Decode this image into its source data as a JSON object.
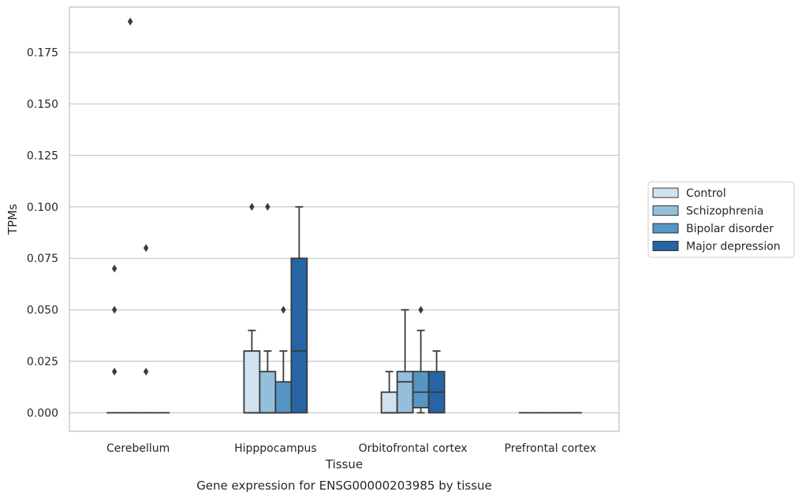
{
  "chart_data": {
    "type": "box",
    "title": "Gene expression for ENSG00000203985 by tissue",
    "xlabel": "Tissue",
    "ylabel": "TPMs",
    "ylim": [
      -0.009,
      0.197
    ],
    "yticks": [
      "0.000",
      "0.025",
      "0.050",
      "0.075",
      "0.100",
      "0.125",
      "0.150",
      "0.175"
    ],
    "ytick_values": [
      0,
      0.025,
      0.05,
      0.075,
      0.1,
      0.125,
      0.15,
      0.175
    ],
    "grid": "horizontal",
    "legend_position": "right",
    "categories": [
      "Cerebellum",
      "Hipppocampus",
      "Orbitofrontal cortex",
      "Prefrontal cortex"
    ],
    "series": [
      {
        "name": "Control",
        "color": "#d0e1f0",
        "boxes": [
          {
            "q1": 0,
            "median": 0,
            "q3": 0,
            "whislo": 0,
            "whishi": 0,
            "fliers": [
              0.02,
              0.05,
              0.07
            ]
          },
          {
            "q1": 0,
            "median": 0,
            "q3": 0.03,
            "whislo": 0,
            "whishi": 0.04,
            "fliers": [
              0.1
            ]
          },
          {
            "q1": 0,
            "median": 0,
            "q3": 0.01,
            "whislo": 0,
            "whishi": 0.02,
            "fliers": []
          },
          {
            "q1": 0,
            "median": 0,
            "q3": 0,
            "whislo": 0,
            "whishi": 0,
            "fliers": []
          }
        ]
      },
      {
        "name": "Schizophrenia",
        "color": "#94bfdb",
        "boxes": [
          {
            "q1": 0,
            "median": 0,
            "q3": 0,
            "whislo": 0,
            "whishi": 0,
            "fliers": [
              0.19
            ]
          },
          {
            "q1": 0,
            "median": 0,
            "q3": 0.02,
            "whislo": 0,
            "whishi": 0.03,
            "fliers": [
              0.1
            ]
          },
          {
            "q1": 0,
            "median": 0.015,
            "q3": 0.02,
            "whislo": 0,
            "whishi": 0.05,
            "fliers": []
          },
          {
            "q1": 0,
            "median": 0,
            "q3": 0,
            "whislo": 0,
            "whishi": 0,
            "fliers": []
          }
        ]
      },
      {
        "name": "Bipolar disorder",
        "color": "#5596c4",
        "boxes": [
          {
            "q1": 0,
            "median": 0,
            "q3": 0,
            "whislo": 0,
            "whishi": 0,
            "fliers": [
              0.02,
              0.08
            ]
          },
          {
            "q1": 0,
            "median": 0,
            "q3": 0.015,
            "whislo": 0,
            "whishi": 0.03,
            "fliers": [
              0.05
            ]
          },
          {
            "q1": 0.0025,
            "median": 0.01,
            "q3": 0.02,
            "whislo": 0,
            "whishi": 0.04,
            "fliers": [
              0.05
            ]
          },
          {
            "q1": 0,
            "median": 0,
            "q3": 0,
            "whislo": 0,
            "whishi": 0,
            "fliers": []
          }
        ]
      },
      {
        "name": "Major depression",
        "color": "#2664a5",
        "boxes": [
          {
            "q1": 0,
            "median": 0,
            "q3": 0,
            "whislo": 0,
            "whishi": 0,
            "fliers": []
          },
          {
            "q1": 0,
            "median": 0.03,
            "q3": 0.075,
            "whislo": 0,
            "whishi": 0.1,
            "fliers": []
          },
          {
            "q1": 0,
            "median": 0.01,
            "q3": 0.02,
            "whislo": 0,
            "whishi": 0.03,
            "fliers": []
          },
          {
            "q1": 0,
            "median": 0,
            "q3": 0,
            "whislo": 0,
            "whishi": 0,
            "fliers": []
          }
        ]
      }
    ]
  }
}
